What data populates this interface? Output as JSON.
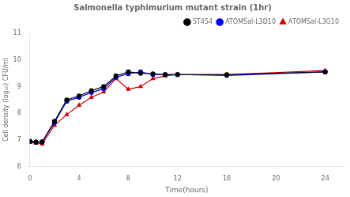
{
  "chart_data": {
    "type": "line",
    "title": "Salmonella typhimurium mutant strain (1hr)",
    "x_label": "Time(hours)",
    "y_label": "Cell density (log₁₀) CFU/ml",
    "xlim": [
      0,
      25.5
    ],
    "ylim": [
      6,
      11
    ],
    "xticks": [
      0,
      4,
      8,
      12,
      16,
      20,
      24
    ],
    "yticks": [
      6,
      7,
      8,
      9,
      10,
      11
    ],
    "grid": false,
    "legend": "upper right",
    "series": [
      {
        "name": "ST454",
        "color": "#000000",
        "marker": "circle",
        "x": [
          0,
          0.5,
          1,
          2,
          3,
          4,
          5,
          6,
          7,
          8,
          9,
          10,
          11,
          12,
          16,
          24
        ],
        "values": [
          6.95,
          6.92,
          6.93,
          7.7,
          8.5,
          8.65,
          8.85,
          9.0,
          9.4,
          9.55,
          9.5,
          9.48,
          9.45,
          9.45,
          9.45,
          9.55
        ]
      },
      {
        "name": "ATOMSal-L3D10",
        "color": "#0000ff",
        "marker": "circle",
        "x": [
          0,
          0.5,
          1,
          2,
          3,
          4,
          5,
          6,
          7,
          8,
          9,
          10,
          11,
          12,
          16,
          24
        ],
        "values": [
          6.95,
          6.92,
          6.93,
          7.65,
          8.45,
          8.6,
          8.78,
          8.92,
          9.35,
          9.48,
          9.55,
          9.45,
          9.45,
          9.45,
          9.42,
          9.55
        ]
      },
      {
        "name": "ATOMSal-L3G10",
        "color": "#cc0000",
        "marker": "triangle",
        "x": [
          0,
          0.5,
          1,
          2,
          3,
          4,
          5,
          6,
          7,
          8,
          9,
          10,
          11,
          12,
          16,
          24
        ],
        "values": [
          6.9,
          6.88,
          6.85,
          7.55,
          7.95,
          8.3,
          8.6,
          8.8,
          9.3,
          8.9,
          9.0,
          9.3,
          9.4,
          9.45,
          9.45,
          9.6
        ]
      }
    ]
  }
}
